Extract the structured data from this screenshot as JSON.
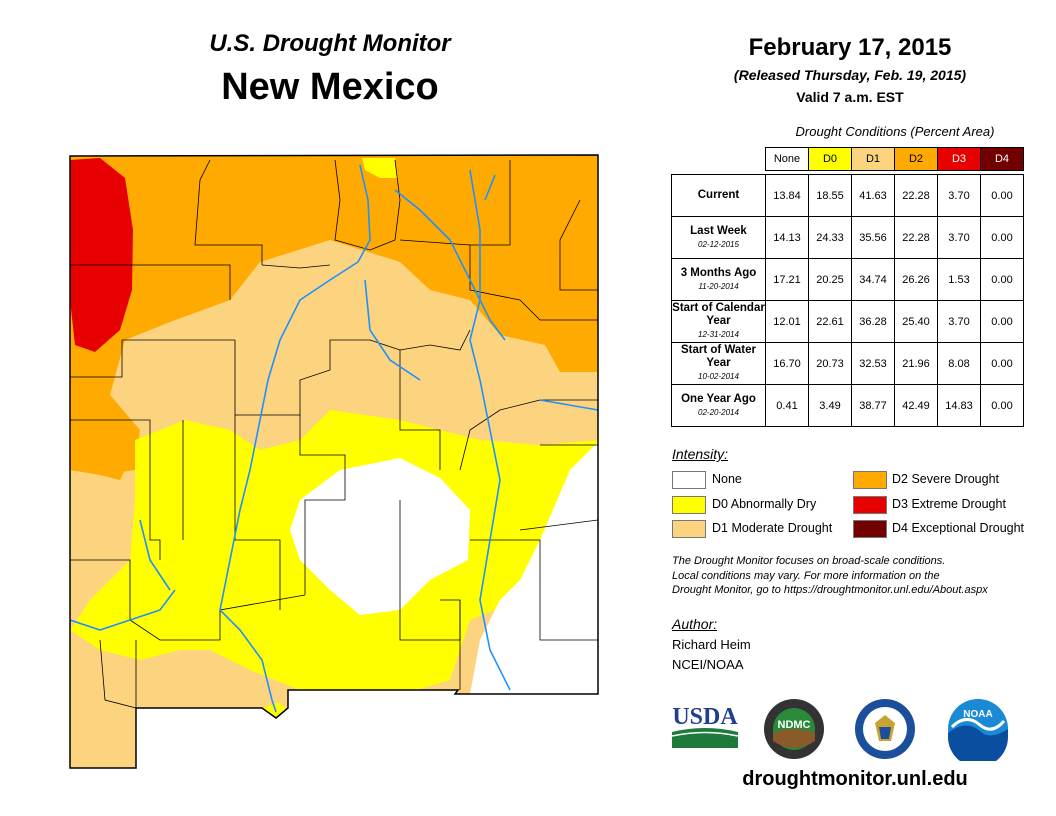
{
  "header": {
    "monitor_title": "U.S. Drought Monitor",
    "state": "New Mexico",
    "date": "February 17, 2015",
    "released": "(Released Thursday, Feb. 19, 2015)",
    "valid": "Valid 7 a.m. EST"
  },
  "table": {
    "title": "Drought Conditions (Percent Area)",
    "columns": [
      {
        "label": "None",
        "color": "#ffffff"
      },
      {
        "label": "D0",
        "color": "#ffff00"
      },
      {
        "label": "D1",
        "color": "#fcd37f"
      },
      {
        "label": "D2",
        "color": "#ffaa00"
      },
      {
        "label": "D3",
        "color": "#e60000"
      },
      {
        "label": "D4",
        "color": "#730000"
      }
    ],
    "rows": [
      {
        "label": "Current",
        "date": "",
        "values": [
          "13.84",
          "18.55",
          "41.63",
          "22.28",
          "3.70",
          "0.00"
        ]
      },
      {
        "label": "Last Week",
        "date": "02-12-2015",
        "values": [
          "14.13",
          "24.33",
          "35.56",
          "22.28",
          "3.70",
          "0.00"
        ]
      },
      {
        "label": "3 Months Ago",
        "date": "11-20-2014",
        "values": [
          "17.21",
          "20.25",
          "34.74",
          "26.26",
          "1.53",
          "0.00"
        ]
      },
      {
        "label": "Start of Calendar Year",
        "date": "12-31-2014",
        "values": [
          "12.01",
          "22.61",
          "36.28",
          "25.40",
          "3.70",
          "0.00"
        ]
      },
      {
        "label": "Start of Water Year",
        "date": "10-02-2014",
        "values": [
          "16.70",
          "20.73",
          "32.53",
          "21.96",
          "8.08",
          "0.00"
        ]
      },
      {
        "label": "One Year Ago",
        "date": "02-20-2014",
        "values": [
          "0.41",
          "3.49",
          "38.77",
          "42.49",
          "14.83",
          "0.00"
        ]
      }
    ]
  },
  "legend": {
    "title": "Intensity:",
    "items": [
      {
        "label": "None",
        "color": "#ffffff"
      },
      {
        "label": "D0 Abnormally Dry",
        "color": "#ffff00"
      },
      {
        "label": "D1 Moderate Drought",
        "color": "#fcd37f"
      },
      {
        "label": "D2 Severe Drought",
        "color": "#ffaa00"
      },
      {
        "label": "D3 Extreme Drought",
        "color": "#e60000"
      },
      {
        "label": "D4 Exceptional Drought",
        "color": "#730000"
      }
    ]
  },
  "note": {
    "line1": "The Drought Monitor focuses on broad-scale conditions.",
    "line2": "Local conditions may vary. For more information on the",
    "line3": "Drought Monitor, go to https://droughtmonitor.unl.edu/About.aspx"
  },
  "author": {
    "title": "Author:",
    "name": "Richard Heim",
    "org": "NCEI/NOAA"
  },
  "logos": {
    "usda": "USDA",
    "ndmc": "NDMC",
    "noaa": "NOAA"
  },
  "footer": {
    "site": "droughtmonitor.unl.edu"
  },
  "map_colors": {
    "river": "#1e90ff",
    "border": "#000000"
  }
}
